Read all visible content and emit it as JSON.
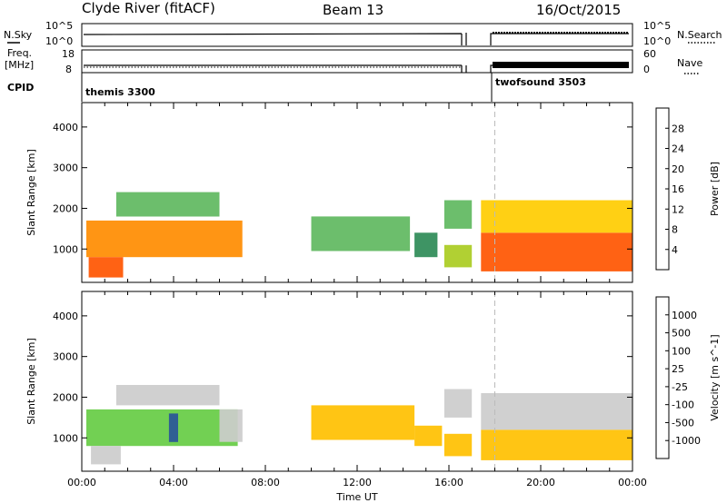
{
  "header": {
    "station": "Clyde River (fitACF)",
    "beam": "Beam 13",
    "date": "16/Oct/2015"
  },
  "top_panels": {
    "nsky_label": "N.Sky",
    "nsky_ticks": [
      "10^5",
      "10^0"
    ],
    "nsearch_label": "N.Search",
    "nsearch_ticks": [
      "10^5",
      "10^0"
    ],
    "freq_label": "Freq.",
    "freq_unit": "[MHz]",
    "freq_ticks": [
      "18",
      "8"
    ],
    "nave_label": "Nave",
    "nave_ticks": [
      "60",
      "0"
    ],
    "cpid_label": "CPID",
    "cpid_segments": [
      {
        "name": "themis 3300",
        "start_h": 0,
        "end_h": 18
      },
      {
        "name": "twofsound 3503",
        "start_h": 18,
        "end_h": 24
      }
    ]
  },
  "colors": {
    "power": [
      "#0000ff",
      "#224488",
      "#2e8b57",
      "#5fb85f",
      "#aacc22",
      "#ffcc00",
      "#ff8c00",
      "#ff5500",
      "#ee0000"
    ],
    "velocity": [
      "#ff0000",
      "#ff6a00",
      "#ff9a00",
      "#ffc000",
      "#cccccc",
      "#66cc44",
      "#3a8a5a",
      "#2a5599",
      "#1a33cc"
    ]
  },
  "chart_data": [
    {
      "type": "heatmap",
      "name": "power",
      "xlabel": "",
      "ylabel": "Slant Range [km]",
      "xlim": [
        0,
        24
      ],
      "ylim": [
        180,
        4600
      ],
      "y_ticks": [
        "1000",
        "2000",
        "3000",
        "4000"
      ],
      "colorbar_label": "Power [dB]",
      "colorbar_ticks": [
        "4",
        "8",
        "12",
        "16",
        "20",
        "24",
        "28"
      ],
      "colorbar_range": [
        0,
        32
      ],
      "regions": [
        {
          "t0": 0.2,
          "t1": 7.0,
          "r0": 800,
          "r1": 1700,
          "value": 23
        },
        {
          "t0": 0.3,
          "t1": 1.8,
          "r0": 300,
          "r1": 800,
          "value": 27
        },
        {
          "t0": 1.5,
          "t1": 6.0,
          "r0": 1800,
          "r1": 2400,
          "value": 12
        },
        {
          "t0": 10.0,
          "t1": 14.3,
          "r0": 950,
          "r1": 1800,
          "value": 14
        },
        {
          "t0": 14.5,
          "t1": 15.5,
          "r0": 800,
          "r1": 1400,
          "value": 10
        },
        {
          "t0": 15.8,
          "t1": 17.0,
          "r0": 550,
          "r1": 1100,
          "value": 17
        },
        {
          "t0": 15.8,
          "t1": 17.0,
          "r0": 1500,
          "r1": 2200,
          "value": 11
        },
        {
          "t0": 17.4,
          "t1": 24.0,
          "r0": 450,
          "r1": 1400,
          "value": 25
        },
        {
          "t0": 17.4,
          "t1": 24.0,
          "r0": 1400,
          "r1": 2200,
          "value": 18
        }
      ]
    },
    {
      "type": "heatmap",
      "name": "velocity",
      "xlabel": "Time UT",
      "ylabel": "Slant Range [km]",
      "xlim": [
        0,
        24
      ],
      "ylim": [
        180,
        4600
      ],
      "x_ticks": [
        "00:00",
        "04:00",
        "08:00",
        "12:00",
        "16:00",
        "20:00",
        "00:00"
      ],
      "y_ticks": [
        "1000",
        "2000",
        "3000",
        "4000"
      ],
      "colorbar_label": "Velocity [m s^-1]",
      "colorbar_ticks": [
        "-1000",
        "-500",
        "-100",
        "-25",
        "25",
        "100",
        "500",
        "1000"
      ],
      "colorbar_range": [
        -1200,
        1200
      ],
      "regions": [
        {
          "t0": 0.2,
          "t1": 6.8,
          "r0": 800,
          "r1": 1700,
          "value": 150
        },
        {
          "t0": 0.4,
          "t1": 1.7,
          "r0": 350,
          "r1": 800,
          "value": 0
        },
        {
          "t0": 3.8,
          "t1": 4.2,
          "r0": 900,
          "r1": 1600,
          "value": 900
        },
        {
          "t0": 6.0,
          "t1": 7.0,
          "r0": 900,
          "r1": 1700,
          "value": -120
        },
        {
          "t0": 1.5,
          "t1": 6.0,
          "r0": 1800,
          "r1": 2300,
          "value": 0
        },
        {
          "t0": 10.0,
          "t1": 14.5,
          "r0": 950,
          "r1": 1800,
          "value": -200
        },
        {
          "t0": 14.5,
          "t1": 15.7,
          "r0": 800,
          "r1": 1300,
          "value": -300
        },
        {
          "t0": 15.8,
          "t1": 17.0,
          "r0": 550,
          "r1": 1100,
          "value": -400
        },
        {
          "t0": 15.8,
          "t1": 17.0,
          "r0": 1500,
          "r1": 2200,
          "value": 0
        },
        {
          "t0": 17.4,
          "t1": 24.0,
          "r0": 450,
          "r1": 1200,
          "value": -300
        },
        {
          "t0": 17.4,
          "t1": 24.0,
          "r0": 1200,
          "r1": 2100,
          "value": 0
        }
      ]
    }
  ]
}
